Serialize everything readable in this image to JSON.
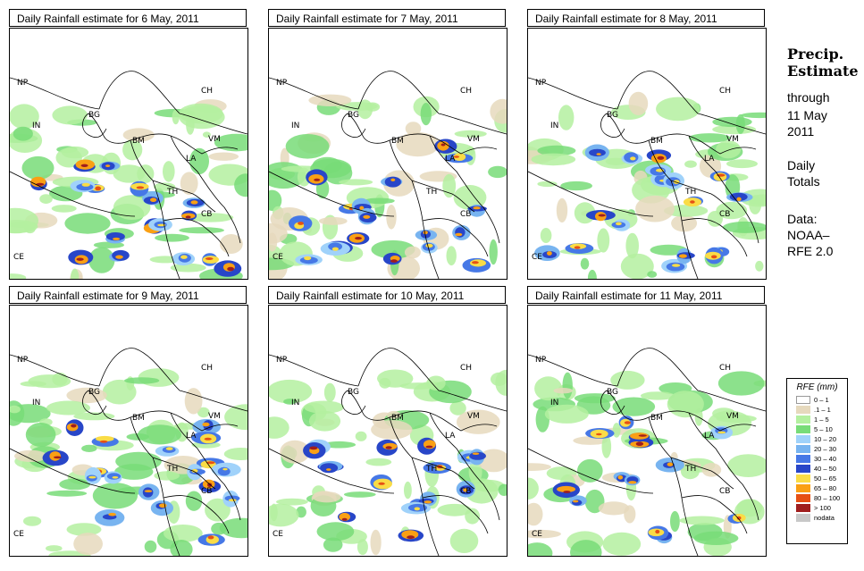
{
  "panels": [
    {
      "title": "Daily Rainfall estimate for  6 May, 2011",
      "intensity": 0.55,
      "seed": 11
    },
    {
      "title": "Daily Rainfall estimate for  7 May, 2011",
      "intensity": 0.6,
      "seed": 23
    },
    {
      "title": "Daily Rainfall estimate for  8 May, 2011",
      "intensity": 0.55,
      "seed": 37
    },
    {
      "title": "Daily Rainfall estimate for  9 May, 2011",
      "intensity": 0.65,
      "seed": 41
    },
    {
      "title": "Daily Rainfall estimate for  10 May, 2011",
      "intensity": 0.5,
      "seed": 53
    },
    {
      "title": "Daily Rainfall estimate for  11 May, 2011",
      "intensity": 0.3,
      "seed": 67
    }
  ],
  "country_labels": {
    "np": "NP",
    "ch": "CH",
    "in": "IN",
    "bg": "BG",
    "bm": "BM",
    "vm": "VM",
    "la": "LA",
    "th": "TH",
    "cb": "CB",
    "ce": "CE"
  },
  "sidebar": {
    "heading_line1": "Precip.",
    "heading_line2": "Estimate",
    "through": "through",
    "date_line1": "11 May",
    "date_line2": "2011",
    "totals_line1": "Daily",
    "totals_line2": "Totals",
    "data_line1": "Data:",
    "data_line2": "NOAA–",
    "data_line3": "RFE 2.0"
  },
  "legend": {
    "title": "RFE (mm)",
    "items": [
      {
        "label": "0 – 1",
        "color": "#ffffff"
      },
      {
        "label": ".1 – 1",
        "color": "#e6d9bd"
      },
      {
        "label": "1 – 5",
        "color": "#b4f0a0"
      },
      {
        "label": "5 – 10",
        "color": "#78dc78"
      },
      {
        "label": "10 – 20",
        "color": "#a0d2fa"
      },
      {
        "label": "20 – 30",
        "color": "#78b4f0"
      },
      {
        "label": "30 – 40",
        "color": "#4678e6"
      },
      {
        "label": "40 – 50",
        "color": "#2846c8"
      },
      {
        "label": "50 – 65",
        "color": "#fadc46"
      },
      {
        "label": "65 – 80",
        "color": "#faa014"
      },
      {
        "label": "80 – 100",
        "color": "#e65014"
      },
      {
        "label": "> 100",
        "color": "#a01e1e"
      },
      {
        "label": "nodata",
        "color": "#c8c8c8"
      }
    ]
  }
}
